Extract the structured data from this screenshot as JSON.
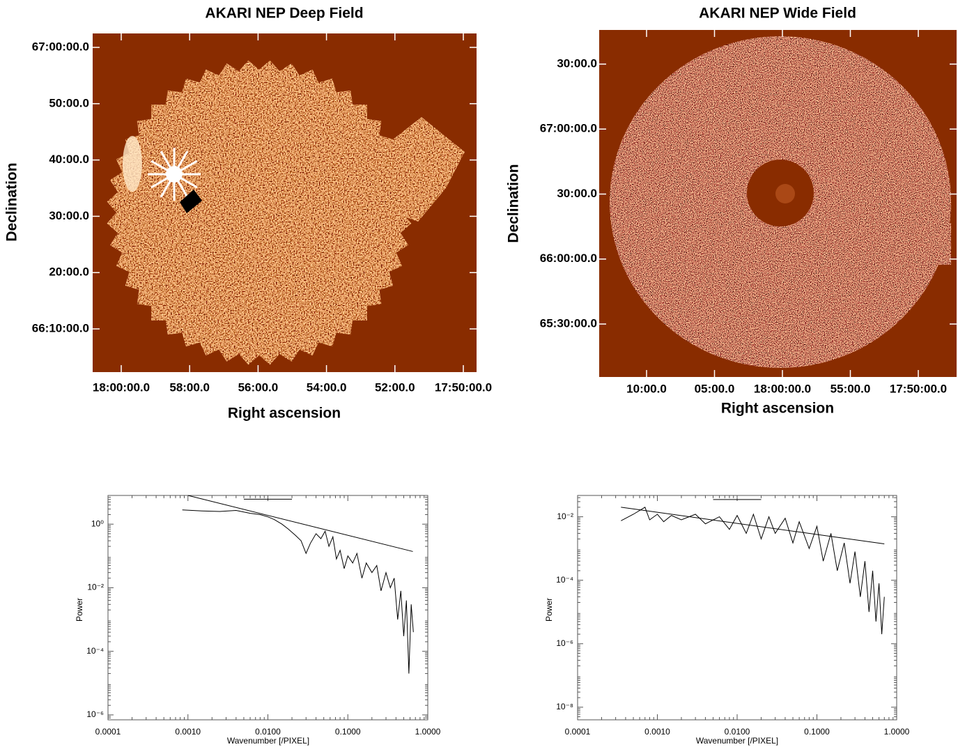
{
  "chart_data": [
    {
      "type": "image",
      "title": "AKARI NEP Deep Field",
      "xlabel": "Right ascension",
      "ylabel": "Declination",
      "xtick_labels": [
        "18:00:00.0",
        "58:00.0",
        "56:00.0",
        "54:00.0",
        "52:00.0",
        "17:50:00.0"
      ],
      "ytick_labels": [
        "67:00:00.0",
        "50:00.0",
        "40:00.0",
        "30:00.0",
        "20:00.0",
        "66:10:00.0"
      ]
    },
    {
      "type": "image",
      "title": "AKARI NEP Wide Field",
      "xlabel": "Right ascension",
      "ylabel": "Declination",
      "xtick_labels": [
        "10:00.0",
        "05:00.0",
        "18:00:00.0",
        "55:00.0",
        "17:50:00.0"
      ],
      "ytick_labels": [
        "30:00.0",
        "67:00:00.0",
        "30:00.0",
        "66:00:00.0",
        "65:30:00.0"
      ]
    },
    {
      "type": "line",
      "xlabel": "Wavenumber [/PIXEL]",
      "ylabel": "Power",
      "xlog": true,
      "ylog": true,
      "xlim": [
        0.0001,
        1
      ],
      "ylim": [
        7e-07,
        8
      ],
      "xticks": [
        {
          "value": 0.0001,
          "label": "0.0001"
        },
        {
          "value": 0.001,
          "label": "0.0010"
        },
        {
          "value": 0.01,
          "label": "0.0100"
        },
        {
          "value": 0.1,
          "label": "0.1000"
        },
        {
          "value": 1,
          "label": "1.0000"
        }
      ],
      "yticks": [
        {
          "value": 1e-06,
          "label": "10⁻⁶"
        },
        {
          "value": 0.0001,
          "label": "10⁻⁴"
        },
        {
          "value": 0.01,
          "label": "10⁻²"
        },
        {
          "value": 1,
          "label": "10⁰"
        }
      ],
      "series": [
        {
          "color": "#000000",
          "x": [
            0.00085,
            0.0015,
            0.0025,
            0.004,
            0.006,
            0.008,
            0.01,
            0.012,
            0.015,
            0.018,
            0.022,
            0.026,
            0.03,
            0.034,
            0.04,
            0.046,
            0.052,
            0.058,
            0.065,
            0.072,
            0.08,
            0.09,
            0.1,
            0.115,
            0.13,
            0.15,
            0.17,
            0.2,
            0.23,
            0.26,
            0.3,
            0.34,
            0.38,
            0.42,
            0.46,
            0.5,
            0.54,
            0.58,
            0.62,
            0.66
          ],
          "values": [
            2.8,
            2.6,
            2.5,
            2.7,
            2.2,
            2.0,
            1.7,
            1.4,
            1.0,
            0.7,
            0.45,
            0.3,
            0.12,
            0.25,
            0.5,
            0.35,
            0.6,
            0.2,
            0.4,
            0.08,
            0.15,
            0.04,
            0.1,
            0.06,
            0.12,
            0.02,
            0.06,
            0.03,
            0.05,
            0.008,
            0.03,
            0.01,
            0.02,
            0.001,
            0.008,
            0.0003,
            0.004,
            2e-05,
            0.003,
            0.0004
          ]
        },
        {
          "color": "#000000",
          "x": [
            0.001,
            0.65
          ],
          "values": [
            8,
            0.138
          ]
        },
        {
          "color": "#000000",
          "x": [
            0.005,
            0.02
          ],
          "values": [
            6.1,
            6.1
          ]
        }
      ]
    },
    {
      "type": "line",
      "xlabel": "Wavenumber [/PIXEL]",
      "ylabel": "Power",
      "xlog": true,
      "ylog": true,
      "xlim": [
        0.0001,
        1
      ],
      "ylim": [
        4e-09,
        0.047
      ],
      "xticks": [
        {
          "value": 0.0001,
          "label": "0.0001"
        },
        {
          "value": 0.001,
          "label": "0.0010"
        },
        {
          "value": 0.01,
          "label": "0.0100"
        },
        {
          "value": 0.1,
          "label": "0.1000"
        },
        {
          "value": 1,
          "label": "1.0000"
        }
      ],
      "yticks": [
        {
          "value": 1e-08,
          "label": "10⁻⁸"
        },
        {
          "value": 1e-06,
          "label": "10⁻⁶"
        },
        {
          "value": 0.0001,
          "label": "10⁻⁴"
        },
        {
          "value": 0.01,
          "label": "10⁻²"
        }
      ],
      "series": [
        {
          "color": "#000000",
          "x": [
            0.00035,
            0.0005,
            0.0007,
            0.0008,
            0.001,
            0.0012,
            0.0015,
            0.002,
            0.003,
            0.004,
            0.006,
            0.008,
            0.01,
            0.013,
            0.016,
            0.02,
            0.025,
            0.03,
            0.04,
            0.05,
            0.06,
            0.08,
            0.1,
            0.12,
            0.15,
            0.18,
            0.22,
            0.26,
            0.3,
            0.35,
            0.4,
            0.45,
            0.5,
            0.55,
            0.6,
            0.65,
            0.7
          ],
          "values": [
            0.0075,
            0.012,
            0.02,
            0.008,
            0.012,
            0.007,
            0.011,
            0.008,
            0.012,
            0.006,
            0.01,
            0.004,
            0.011,
            0.003,
            0.012,
            0.002,
            0.01,
            0.003,
            0.009,
            0.0015,
            0.007,
            0.001,
            0.005,
            0.0004,
            0.003,
            0.0002,
            0.0015,
            8e-05,
            0.0008,
            3e-05,
            0.0004,
            1e-05,
            0.0002,
            5e-06,
            8e-05,
            2e-06,
            3e-05
          ]
        },
        {
          "color": "#000000",
          "x": [
            0.00035,
            0.7
          ],
          "values": [
            0.02,
            0.0014
          ]
        },
        {
          "color": "#000000",
          "x": [
            0.005,
            0.02
          ],
          "values": [
            0.035,
            0.035
          ]
        }
      ]
    }
  ]
}
